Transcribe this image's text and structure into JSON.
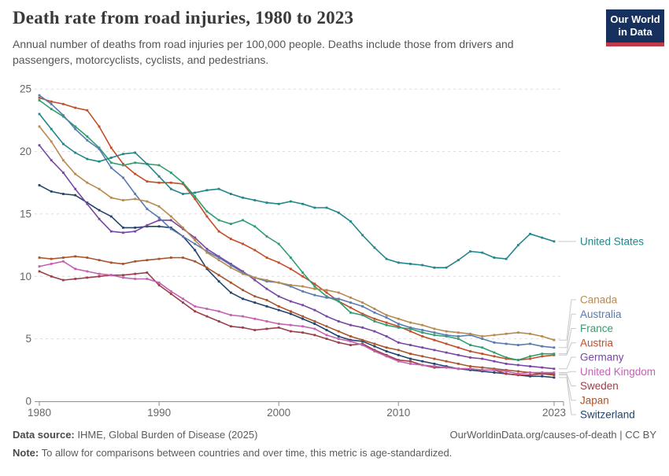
{
  "header": {
    "logo": {
      "line1": "Our World",
      "line2": "in Data",
      "bg": "#16315d",
      "accent": "#c13a4c"
    }
  },
  "footer": {
    "source_label": "Data source:",
    "source_text": " IHME, Global Burden of Disease (2025)",
    "rights": "OurWorldinData.org/causes-of-death | CC BY",
    "note_label": "Note:",
    "note_text": " To allow for comparisons between countries and over time, this metric is age-standardized."
  },
  "chart_data": {
    "type": "line",
    "title": "Death rate from road injuries, 1980 to 2023",
    "subtitle": "Annual number of deaths from road injuries per 100,000 people. Deaths include those from drivers and passengers, motorcyclists, cyclists, and pedestrians.",
    "xlabel": "",
    "ylabel": "",
    "ylim": [
      0,
      25
    ],
    "yticks": [
      0,
      5,
      10,
      15,
      20,
      25
    ],
    "xticks": [
      1980,
      1990,
      2000,
      2010,
      2023
    ],
    "grid": "dashed-horizontal",
    "legend_position": "right-edge-labels",
    "axis_color": "#8f8f8f",
    "grid_color": "#dcdcdc",
    "tick_label_color": "#666666",
    "x": [
      1980,
      1981,
      1982,
      1983,
      1984,
      1985,
      1986,
      1987,
      1988,
      1989,
      1990,
      1991,
      1992,
      1993,
      1994,
      1995,
      1996,
      1997,
      1998,
      1999,
      2000,
      2001,
      2002,
      2003,
      2004,
      2005,
      2006,
      2007,
      2008,
      2009,
      2010,
      2011,
      2012,
      2013,
      2014,
      2015,
      2016,
      2017,
      2018,
      2019,
      2020,
      2021,
      2022,
      2023
    ],
    "series": [
      {
        "name": "United States",
        "color": "#23868B",
        "values": [
          23.0,
          21.8,
          20.6,
          19.9,
          19.4,
          19.2,
          19.5,
          19.8,
          19.9,
          19.0,
          18.0,
          17.0,
          16.6,
          16.7,
          16.9,
          17.0,
          16.6,
          16.3,
          16.1,
          15.9,
          15.8,
          16.0,
          15.8,
          15.5,
          15.5,
          15.1,
          14.4,
          13.3,
          12.3,
          11.4,
          11.1,
          11.0,
          10.9,
          10.7,
          10.7,
          11.3,
          12.0,
          11.9,
          11.5,
          11.4,
          12.5,
          13.4,
          13.1,
          12.8
        ]
      },
      {
        "name": "Canada",
        "color": "#B98A4F",
        "values": [
          22.0,
          20.8,
          19.3,
          18.2,
          17.5,
          17.0,
          16.3,
          16.1,
          16.2,
          16.0,
          15.6,
          14.8,
          13.9,
          12.9,
          11.9,
          11.3,
          10.7,
          10.2,
          9.9,
          9.7,
          9.5,
          9.3,
          9.2,
          9.0,
          8.9,
          8.7,
          8.3,
          7.9,
          7.4,
          6.9,
          6.6,
          6.3,
          6.1,
          5.8,
          5.6,
          5.5,
          5.4,
          5.2,
          5.3,
          5.4,
          5.5,
          5.4,
          5.2,
          4.9
        ]
      },
      {
        "name": "Australia",
        "color": "#587AB0",
        "values": [
          24.5,
          23.8,
          22.9,
          21.8,
          20.9,
          20.2,
          18.7,
          17.9,
          16.6,
          15.4,
          14.7,
          13.8,
          13.2,
          12.6,
          12.0,
          11.5,
          10.9,
          10.3,
          9.9,
          9.6,
          9.5,
          9.2,
          8.8,
          8.5,
          8.3,
          8.2,
          7.9,
          7.6,
          7.1,
          6.7,
          6.2,
          5.9,
          5.7,
          5.5,
          5.3,
          5.2,
          5.3,
          5.0,
          4.7,
          4.6,
          4.5,
          4.6,
          4.4,
          4.3
        ]
      },
      {
        "name": "France",
        "color": "#2F9E6F",
        "values": [
          24.1,
          23.4,
          22.8,
          22.0,
          21.2,
          20.3,
          19.1,
          18.9,
          19.1,
          19.0,
          18.9,
          18.3,
          17.5,
          16.4,
          15.2,
          14.5,
          14.2,
          14.5,
          14.0,
          13.2,
          12.6,
          11.5,
          10.3,
          9.2,
          8.4,
          8.0,
          7.1,
          6.9,
          6.4,
          6.1,
          5.9,
          5.8,
          5.5,
          5.3,
          5.2,
          5.0,
          4.5,
          4.3,
          3.9,
          3.5,
          3.3,
          3.6,
          3.8,
          3.8
        ]
      },
      {
        "name": "Austria",
        "color": "#C14E28",
        "values": [
          24.3,
          24.0,
          23.8,
          23.5,
          23.3,
          22.0,
          20.3,
          19.0,
          18.2,
          17.6,
          17.5,
          17.5,
          17.4,
          16.2,
          14.8,
          13.6,
          13.0,
          12.6,
          12.1,
          11.5,
          11.1,
          10.6,
          10.0,
          9.4,
          8.7,
          8.0,
          7.5,
          7.0,
          6.6,
          6.3,
          6.0,
          5.6,
          5.2,
          4.9,
          4.6,
          4.3,
          4.0,
          3.8,
          3.6,
          3.4,
          3.3,
          3.4,
          3.6,
          3.7
        ]
      },
      {
        "name": "Germany",
        "color": "#7747A3",
        "values": [
          20.5,
          19.3,
          18.3,
          17.0,
          15.8,
          14.6,
          13.6,
          13.5,
          13.6,
          14.1,
          14.5,
          14.5,
          13.8,
          13.1,
          12.2,
          11.6,
          11.0,
          10.4,
          9.7,
          9.0,
          8.4,
          8.0,
          7.7,
          7.3,
          6.8,
          6.4,
          6.1,
          5.9,
          5.6,
          5.2,
          4.7,
          4.5,
          4.3,
          4.1,
          3.9,
          3.7,
          3.5,
          3.4,
          3.2,
          3.0,
          2.9,
          2.8,
          2.7,
          2.6
        ]
      },
      {
        "name": "United Kingdom",
        "color": "#C262B2",
        "values": [
          10.8,
          11.0,
          11.2,
          10.6,
          10.4,
          10.2,
          10.1,
          9.9,
          9.8,
          9.8,
          9.5,
          8.8,
          8.2,
          7.6,
          7.4,
          7.2,
          6.9,
          6.8,
          6.6,
          6.4,
          6.2,
          6.1,
          6.0,
          5.8,
          5.3,
          5.0,
          4.8,
          4.5,
          4.0,
          3.6,
          3.2,
          3.0,
          2.9,
          2.8,
          2.7,
          2.6,
          2.6,
          2.5,
          2.5,
          2.4,
          2.2,
          2.3,
          2.3,
          2.3
        ]
      },
      {
        "name": "Sweden",
        "color": "#9B3E47",
        "values": [
          10.4,
          10.0,
          9.7,
          9.8,
          9.9,
          10.0,
          10.1,
          10.1,
          10.2,
          10.3,
          9.3,
          8.6,
          7.9,
          7.2,
          6.8,
          6.4,
          6.0,
          5.9,
          5.7,
          5.8,
          5.9,
          5.6,
          5.5,
          5.3,
          5.0,
          4.7,
          4.5,
          4.6,
          4.1,
          3.7,
          3.3,
          3.2,
          2.9,
          2.7,
          2.7,
          2.6,
          2.6,
          2.5,
          2.5,
          2.2,
          2.1,
          2.1,
          2.2,
          2.2
        ]
      },
      {
        "name": "Japan",
        "color": "#A8552E",
        "values": [
          11.5,
          11.4,
          11.5,
          11.6,
          11.5,
          11.3,
          11.1,
          11.0,
          11.2,
          11.3,
          11.4,
          11.5,
          11.5,
          11.2,
          10.7,
          10.1,
          9.5,
          8.9,
          8.4,
          8.1,
          7.6,
          7.2,
          6.8,
          6.4,
          6.0,
          5.6,
          5.2,
          4.9,
          4.6,
          4.3,
          4.1,
          3.8,
          3.6,
          3.4,
          3.2,
          3.0,
          2.8,
          2.7,
          2.6,
          2.5,
          2.4,
          2.3,
          2.2,
          2.1
        ]
      },
      {
        "name": "Switzerland",
        "color": "#23436C",
        "values": [
          17.3,
          16.8,
          16.6,
          16.5,
          15.9,
          15.3,
          14.8,
          13.9,
          13.9,
          14.0,
          14.0,
          13.9,
          13.2,
          12.1,
          10.6,
          9.6,
          8.7,
          8.2,
          7.9,
          7.6,
          7.3,
          7.0,
          6.6,
          6.2,
          5.7,
          5.2,
          4.9,
          4.8,
          4.4,
          4.0,
          3.7,
          3.4,
          3.2,
          3.0,
          2.8,
          2.6,
          2.5,
          2.4,
          2.3,
          2.2,
          2.1,
          2.0,
          2.0,
          1.9
        ]
      }
    ]
  }
}
